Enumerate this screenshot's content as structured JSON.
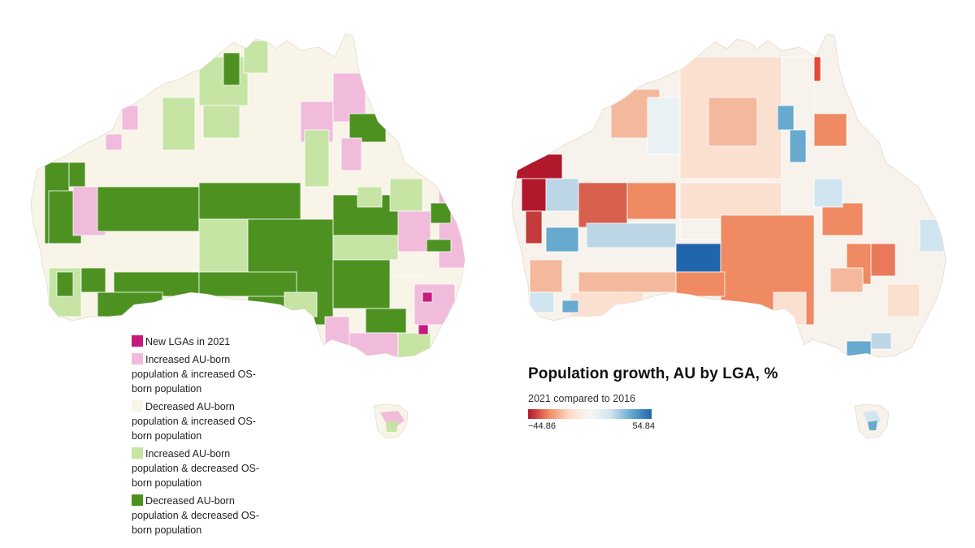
{
  "left_map": {
    "legend": [
      {
        "label": "New LGAs in 2021",
        "color": "#c51b7d"
      },
      {
        "label": "Increased AU-born population & increased OS-born population",
        "color": "#f1bbdc"
      },
      {
        "label": "Decreased AU-born population & increased OS-born population",
        "color": "#f8f4e8"
      },
      {
        "label": "Increased AU-born population & decreased OS-born population",
        "color": "#c6e4a4"
      },
      {
        "label": "Decreased AU-born population & decreased OS-born population",
        "color": "#4d9221"
      }
    ]
  },
  "right_map": {
    "title": "Population growth, AU by LGA, %",
    "subtitle": "2021 compared to 2016",
    "scale_min": "−44.86",
    "scale_max": "54.84",
    "colors": {
      "deep_red": "#b2182b",
      "orange": "#ef8a62",
      "light_salmon": "#f4b99c",
      "pale_peach": "#fbe0d0",
      "neutral": "#f7f2ec",
      "light_blue": "#bcd6e6",
      "mid_blue": "#67a9cf",
      "deep_blue": "#2166ac"
    }
  }
}
